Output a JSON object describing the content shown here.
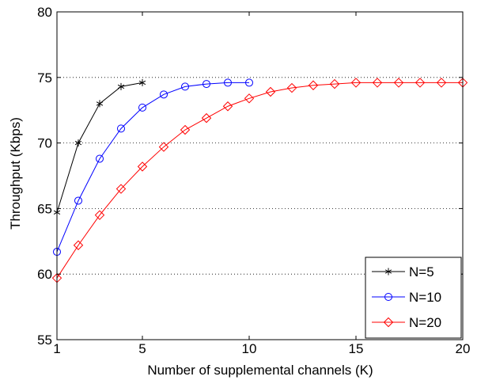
{
  "chart_data": {
    "type": "line",
    "title": "",
    "xlabel": "Number of supplemental channels (K)",
    "ylabel": "Throughput (Kbps)",
    "xlim": [
      1,
      20
    ],
    "ylim": [
      55,
      80
    ],
    "x_ticks": [
      1,
      5,
      10,
      15,
      20
    ],
    "y_ticks": [
      55,
      60,
      65,
      70,
      75,
      80
    ],
    "grid": "horizontal dotted",
    "legend_position": "bottom-right",
    "series": [
      {
        "name": "N=5",
        "color": "#000000",
        "marker": "asterisk",
        "x": [
          1,
          2,
          3,
          4,
          5
        ],
        "values": [
          64.7,
          70.0,
          73.0,
          74.3,
          74.6
        ]
      },
      {
        "name": "N=10",
        "color": "#0000ff",
        "marker": "circle",
        "x": [
          1,
          2,
          3,
          4,
          5,
          6,
          7,
          8,
          9,
          10
        ],
        "values": [
          61.7,
          65.6,
          68.8,
          71.1,
          72.7,
          73.7,
          74.3,
          74.5,
          74.6,
          74.6
        ]
      },
      {
        "name": "N=20",
        "color": "#ff0000",
        "marker": "diamond",
        "x": [
          1,
          2,
          3,
          4,
          5,
          6,
          7,
          8,
          9,
          10,
          11,
          12,
          13,
          14,
          15,
          16,
          17,
          18,
          19,
          20
        ],
        "values": [
          59.7,
          62.2,
          64.5,
          66.5,
          68.2,
          69.7,
          71.0,
          71.9,
          72.8,
          73.4,
          73.9,
          74.2,
          74.4,
          74.5,
          74.6,
          74.6,
          74.6,
          74.6,
          74.6,
          74.6
        ]
      }
    ]
  }
}
